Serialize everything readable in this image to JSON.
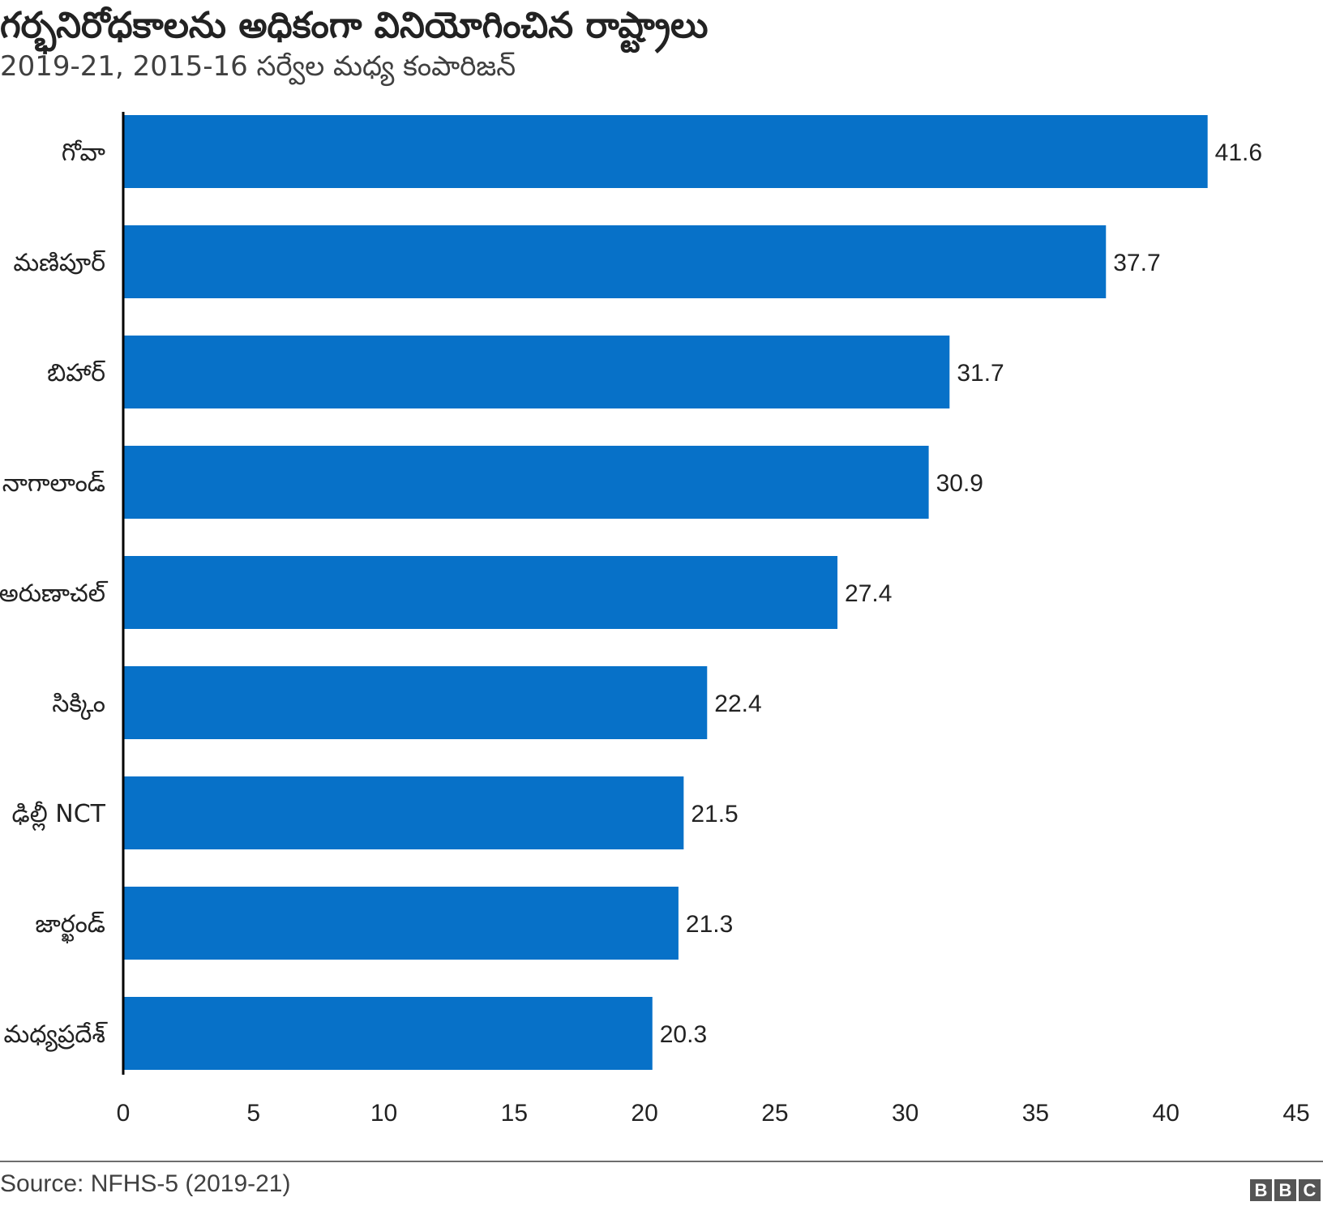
{
  "title": "గర్భనిరోధకాలను అధికంగా వినియోగించిన రాష్ట్రాలు",
  "subtitle": "2019-21, 2015-16 సర్వేల మధ్య కంపారిజన్",
  "source": "Source: NFHS-5 (2019-21)",
  "logo": [
    "B",
    "B",
    "C"
  ],
  "colors": {
    "bar": "#0771c8",
    "axis": "#000000",
    "text": "#222222"
  },
  "chart_data": {
    "type": "bar",
    "orientation": "horizontal",
    "categories": [
      "గోవా",
      "మణిపూర్",
      "బిహార్",
      "నాగాలాండ్",
      "అరుణాచల్",
      "సిక్కిం",
      "ఢిల్లీ NCT",
      "జార్ఖండ్",
      "మధ్యప్రదేశ్"
    ],
    "values": [
      41.6,
      37.7,
      31.7,
      30.9,
      27.4,
      22.4,
      21.5,
      21.3,
      20.3
    ],
    "value_labels": [
      "41.6",
      "37.7",
      "31.7",
      "30.9",
      "27.4",
      "22.4",
      "21.5",
      "21.3",
      "20.3"
    ],
    "xlim": [
      0,
      45
    ],
    "xticks": [
      0,
      5,
      10,
      15,
      20,
      25,
      30,
      35,
      40,
      45
    ],
    "grid": false,
    "legend": "none"
  }
}
